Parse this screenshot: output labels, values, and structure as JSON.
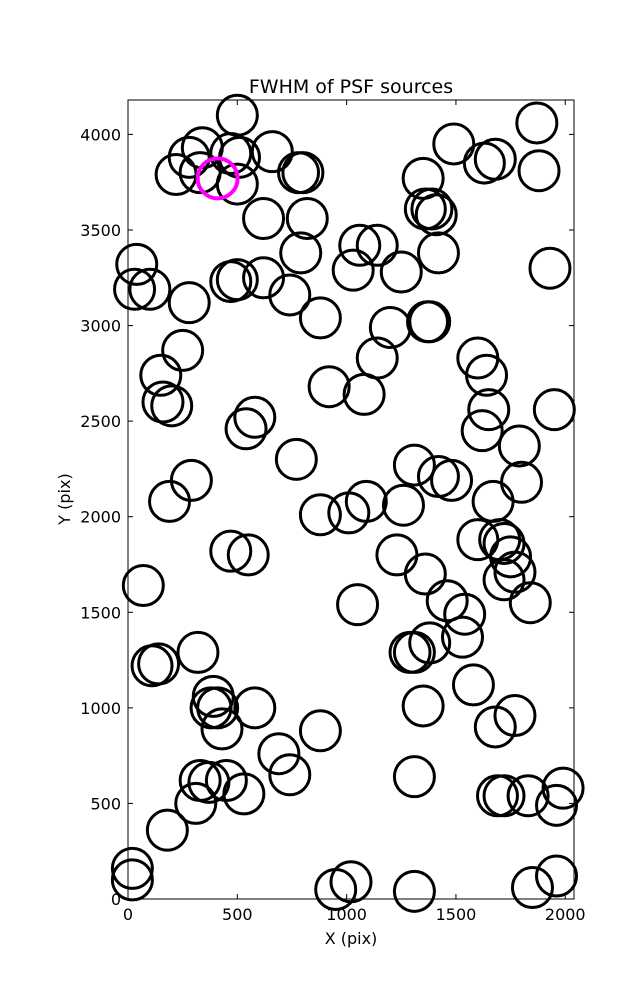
{
  "chart_data": {
    "type": "scatter",
    "title": "FWHM of PSF sources",
    "xlabel": "X (pix)",
    "ylabel": "Y (pix)",
    "xlim": [
      0,
      2040
    ],
    "ylim": [
      0,
      4180
    ],
    "xticks": [
      0,
      500,
      1000,
      1500,
      2000
    ],
    "yticks": [
      0,
      500,
      1000,
      1500,
      2000,
      2500,
      3000,
      3500,
      4000
    ],
    "grid": false,
    "legend": "none",
    "marker": "open circle",
    "colors": {
      "sources": "#000000",
      "highlight": "#ff00ff"
    },
    "series": [
      {
        "color": "#000000",
        "points": [
          [
            340,
            3930
          ],
          [
            280,
            3880
          ],
          [
            470,
            3900
          ],
          [
            510,
            3880
          ],
          [
            220,
            3790
          ],
          [
            330,
            3800
          ],
          [
            500,
            3740
          ],
          [
            500,
            4100
          ],
          [
            660,
            3910
          ],
          [
            780,
            3800
          ],
          [
            800,
            3800
          ],
          [
            820,
            3560
          ],
          [
            620,
            3560
          ],
          [
            790,
            3380
          ],
          [
            1060,
            3420
          ],
          [
            1140,
            3420
          ],
          [
            1030,
            3290
          ],
          [
            1250,
            3280
          ],
          [
            1420,
            3380
          ],
          [
            1360,
            3610
          ],
          [
            1390,
            3610
          ],
          [
            1410,
            3580
          ],
          [
            1350,
            3770
          ],
          [
            1490,
            3950
          ],
          [
            1630,
            3850
          ],
          [
            1680,
            3870
          ],
          [
            1870,
            4060
          ],
          [
            1880,
            3810
          ],
          [
            1930,
            3300
          ],
          [
            40,
            3320
          ],
          [
            30,
            3190
          ],
          [
            100,
            3190
          ],
          [
            280,
            3120
          ],
          [
            470,
            3230
          ],
          [
            500,
            3240
          ],
          [
            620,
            3250
          ],
          [
            740,
            3160
          ],
          [
            880,
            3040
          ],
          [
            1200,
            2990
          ],
          [
            1370,
            3020
          ],
          [
            1380,
            3020
          ],
          [
            1140,
            2830
          ],
          [
            1600,
            2830
          ],
          [
            1640,
            2740
          ],
          [
            920,
            2680
          ],
          [
            1080,
            2640
          ],
          [
            150,
            2740
          ],
          [
            250,
            2870
          ],
          [
            160,
            2600
          ],
          [
            200,
            2580
          ],
          [
            540,
            2460
          ],
          [
            580,
            2520
          ],
          [
            770,
            2300
          ],
          [
            1650,
            2560
          ],
          [
            1620,
            2450
          ],
          [
            1790,
            2370
          ],
          [
            1950,
            2560
          ],
          [
            1310,
            2270
          ],
          [
            1420,
            2210
          ],
          [
            1480,
            2190
          ],
          [
            1670,
            2080
          ],
          [
            1800,
            2180
          ],
          [
            290,
            2190
          ],
          [
            190,
            2080
          ],
          [
            880,
            2010
          ],
          [
            1010,
            2020
          ],
          [
            1090,
            2080
          ],
          [
            1260,
            2060
          ],
          [
            470,
            1820
          ],
          [
            550,
            1800
          ],
          [
            1230,
            1800
          ],
          [
            1360,
            1700
          ],
          [
            1600,
            1880
          ],
          [
            1700,
            1880
          ],
          [
            1720,
            1860
          ],
          [
            1750,
            1790
          ],
          [
            1720,
            1670
          ],
          [
            1770,
            1710
          ],
          [
            1840,
            1550
          ],
          [
            1460,
            1560
          ],
          [
            1540,
            1490
          ],
          [
            1530,
            1370
          ],
          [
            1380,
            1340
          ],
          [
            1290,
            1290
          ],
          [
            1310,
            1290
          ],
          [
            1050,
            1540
          ],
          [
            70,
            1640
          ],
          [
            110,
            1220
          ],
          [
            140,
            1230
          ],
          [
            320,
            1290
          ],
          [
            390,
            1060
          ],
          [
            380,
            1000
          ],
          [
            410,
            1000
          ],
          [
            430,
            890
          ],
          [
            580,
            1000
          ],
          [
            880,
            880
          ],
          [
            1350,
            1010
          ],
          [
            1580,
            1120
          ],
          [
            1680,
            900
          ],
          [
            1770,
            960
          ],
          [
            690,
            760
          ],
          [
            740,
            650
          ],
          [
            330,
            620
          ],
          [
            370,
            610
          ],
          [
            450,
            620
          ],
          [
            530,
            550
          ],
          [
            310,
            500
          ],
          [
            180,
            360
          ],
          [
            1310,
            640
          ],
          [
            1690,
            540
          ],
          [
            1720,
            540
          ],
          [
            1830,
            540
          ],
          [
            1960,
            490
          ],
          [
            1990,
            580
          ],
          [
            20,
            160
          ],
          [
            20,
            100
          ],
          [
            950,
            50
          ],
          [
            1020,
            90
          ],
          [
            1310,
            40
          ],
          [
            1850,
            60
          ],
          [
            1960,
            120
          ]
        ]
      },
      {
        "color": "#ff00ff",
        "points": [
          [
            410,
            3770
          ]
        ]
      }
    ]
  }
}
